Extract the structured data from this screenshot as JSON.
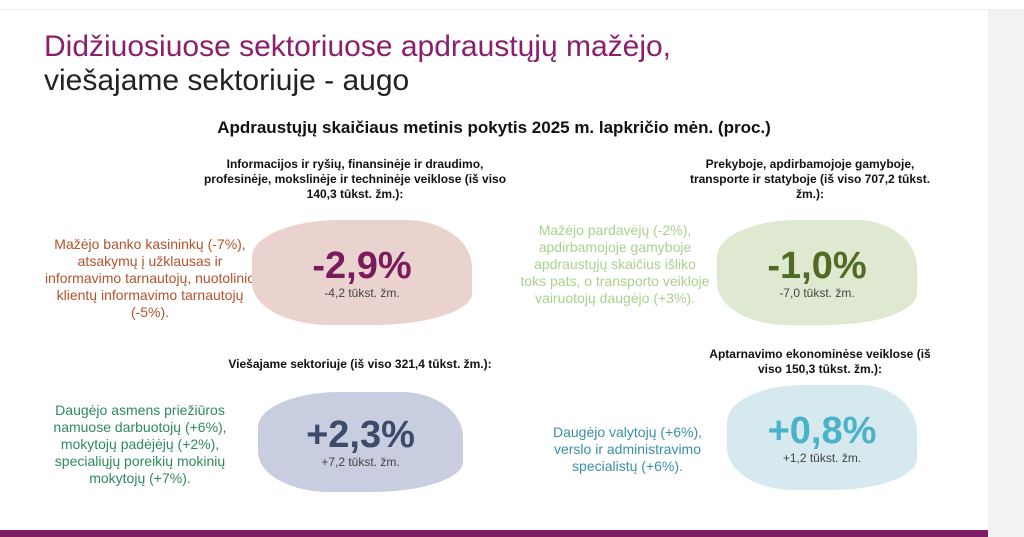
{
  "title": {
    "line1": "Didžiuosiuose sektoriuose apdraustųjų mažėjo,",
    "line2": "viešajame sektoriuje - augo"
  },
  "headline": "Apdraustųjų skaičiaus metinis pokytis 2025 m. lapkričio mėn. (proc.)",
  "panels": [
    {
      "section": "Informacijos ir ryšių, finansinėje ir draudimo, profesinėje, mokslinėje ir techninėje veiklose (iš viso 140,3 tūkst. žm.):",
      "description": "Mažėjo banko kasininkų (-7%), atsakymų į užklausas ir informavimo tarnautojų, nuotolinio klientų informavimo tarnautojų (-5%).",
      "value": "-2,9%",
      "change": "-4,2 tūkst. žm.",
      "text_color": "#b4522c",
      "blob_color": "#ead3cf",
      "value_color": "#7a1b5d"
    },
    {
      "section": "Prekyboje, apdirbamojoje gamyboje, transporte ir statyboje (iš viso 707,2 tūkst. žm.):",
      "description": "Mažėjo pardavėjų (-2%), apdirbamojoje gamyboje apdraustųjų skaičius išliko toks pats, o transporto veikloje vairuotojų daugėjo (+3%).",
      "value": "-1,0%",
      "change": "-7,0 tūkst. žm.",
      "text_color": "#a9d28e",
      "blob_color": "#dfe9d1",
      "value_color": "#4f6b24"
    },
    {
      "section": "Viešajame sektoriuje (iš viso 321,4 tūkst. žm.):",
      "description": "Daugėjo asmens priežiūros namuose darbuotojų (+6%), mokytojų padėjėjų (+2%), specialiųjų poreikių mokinių mokytojų (+7%).",
      "value": "+2,3%",
      "change": "+7,2 tūkst. žm.",
      "text_color": "#2f8a5b",
      "blob_color": "#c8cee0",
      "value_color": "#3d4a6a"
    },
    {
      "section": "Aptarnavimo ekonominėse veiklose (iš viso 150,3 tūkst. žm.):",
      "description": "Daugėjo valytojų (+6%), verslo ir administravimo specialistų (+6%).",
      "value": "+0,8%",
      "change": "+1,2 tūkst. žm.",
      "text_color": "#3a8fa8",
      "blob_color": "#d6e9ef",
      "value_color": "#4ab2c9"
    }
  ]
}
